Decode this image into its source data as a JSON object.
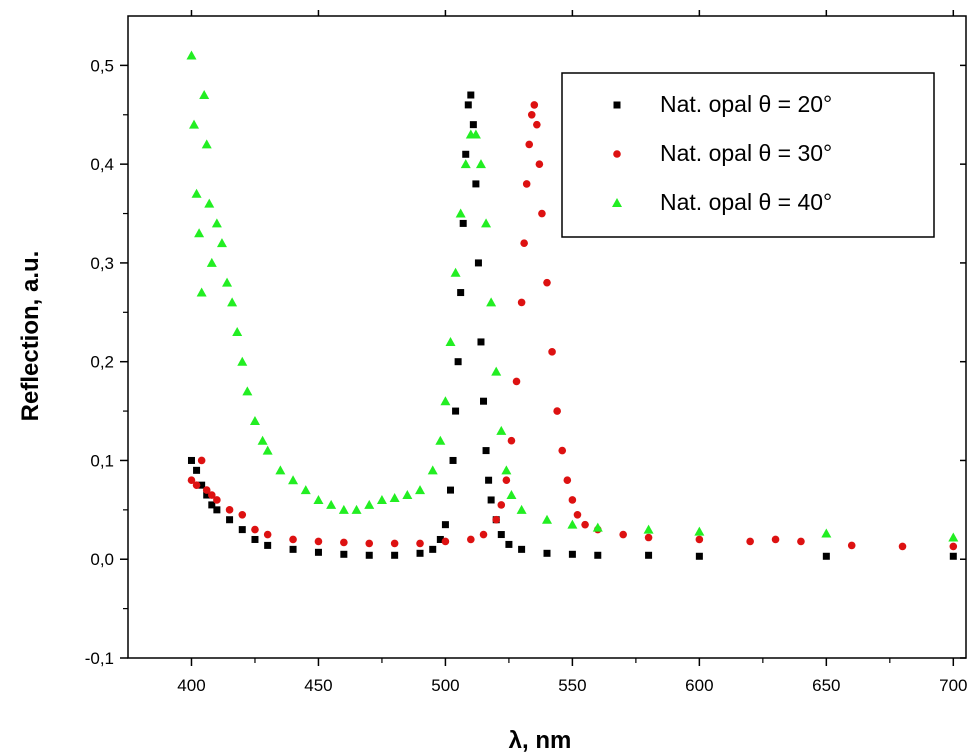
{
  "chart_data": {
    "type": "scatter",
    "title": "",
    "xlabel": "λ, nm",
    "ylabel": "Reflection, a.u.",
    "xlim": [
      375,
      705
    ],
    "ylim": [
      -0.1,
      0.55
    ],
    "x_ticks": [
      400,
      450,
      500,
      550,
      600,
      650,
      700
    ],
    "x_tick_labels": [
      "400",
      "450",
      "500",
      "550",
      "600",
      "650",
      "700"
    ],
    "y_ticks": [
      -0.1,
      0.0,
      0.1,
      0.2,
      0.3,
      0.4,
      0.5
    ],
    "y_tick_labels": [
      "-0,1",
      "0,0",
      "0,1",
      "0,2",
      "0,3",
      "0,4",
      "0,5"
    ],
    "grid": false,
    "legend_position": "top-right",
    "series": [
      {
        "name": "Nat. opal θ = 20°",
        "marker": "square",
        "color": "#000000",
        "points": [
          [
            400,
            0.1
          ],
          [
            402,
            0.09
          ],
          [
            404,
            0.075
          ],
          [
            406,
            0.065
          ],
          [
            408,
            0.055
          ],
          [
            410,
            0.05
          ],
          [
            415,
            0.04
          ],
          [
            420,
            0.03
          ],
          [
            425,
            0.02
          ],
          [
            430,
            0.014
          ],
          [
            440,
            0.01
          ],
          [
            450,
            0.007
          ],
          [
            460,
            0.005
          ],
          [
            470,
            0.004
          ],
          [
            480,
            0.004
          ],
          [
            490,
            0.006
          ],
          [
            495,
            0.01
          ],
          [
            498,
            0.02
          ],
          [
            500,
            0.035
          ],
          [
            502,
            0.07
          ],
          [
            503,
            0.1
          ],
          [
            504,
            0.15
          ],
          [
            505,
            0.2
          ],
          [
            506,
            0.27
          ],
          [
            507,
            0.34
          ],
          [
            508,
            0.41
          ],
          [
            509,
            0.46
          ],
          [
            510,
            0.47
          ],
          [
            511,
            0.44
          ],
          [
            512,
            0.38
          ],
          [
            513,
            0.3
          ],
          [
            514,
            0.22
          ],
          [
            515,
            0.16
          ],
          [
            516,
            0.11
          ],
          [
            517,
            0.08
          ],
          [
            518,
            0.06
          ],
          [
            520,
            0.04
          ],
          [
            522,
            0.025
          ],
          [
            525,
            0.015
          ],
          [
            530,
            0.01
          ],
          [
            540,
            0.006
          ],
          [
            550,
            0.005
          ],
          [
            560,
            0.004
          ],
          [
            580,
            0.004
          ],
          [
            600,
            0.003
          ],
          [
            650,
            0.003
          ],
          [
            700,
            0.003
          ]
        ]
      },
      {
        "name": "Nat. opal θ = 30°",
        "marker": "circle",
        "color": "#dd1111",
        "points": [
          [
            400,
            0.08
          ],
          [
            402,
            0.075
          ],
          [
            404,
            0.1
          ],
          [
            406,
            0.07
          ],
          [
            408,
            0.065
          ],
          [
            410,
            0.06
          ],
          [
            415,
            0.05
          ],
          [
            420,
            0.045
          ],
          [
            425,
            0.03
          ],
          [
            430,
            0.025
          ],
          [
            440,
            0.02
          ],
          [
            450,
            0.018
          ],
          [
            460,
            0.017
          ],
          [
            470,
            0.016
          ],
          [
            480,
            0.016
          ],
          [
            490,
            0.016
          ],
          [
            500,
            0.018
          ],
          [
            510,
            0.02
          ],
          [
            515,
            0.025
          ],
          [
            520,
            0.04
          ],
          [
            522,
            0.055
          ],
          [
            524,
            0.08
          ],
          [
            526,
            0.12
          ],
          [
            528,
            0.18
          ],
          [
            530,
            0.26
          ],
          [
            531,
            0.32
          ],
          [
            532,
            0.38
          ],
          [
            533,
            0.42
          ],
          [
            534,
            0.45
          ],
          [
            535,
            0.46
          ],
          [
            536,
            0.44
          ],
          [
            537,
            0.4
          ],
          [
            538,
            0.35
          ],
          [
            540,
            0.28
          ],
          [
            542,
            0.21
          ],
          [
            544,
            0.15
          ],
          [
            546,
            0.11
          ],
          [
            548,
            0.08
          ],
          [
            550,
            0.06
          ],
          [
            552,
            0.045
          ],
          [
            555,
            0.035
          ],
          [
            560,
            0.03
          ],
          [
            570,
            0.025
          ],
          [
            580,
            0.022
          ],
          [
            600,
            0.02
          ],
          [
            620,
            0.018
          ],
          [
            630,
            0.02
          ],
          [
            640,
            0.018
          ],
          [
            660,
            0.014
          ],
          [
            680,
            0.013
          ],
          [
            700,
            0.013
          ]
        ]
      },
      {
        "name": "Nat. opal θ = 40°",
        "marker": "triangle",
        "color": "#22ee22",
        "points": [
          [
            400,
            0.51
          ],
          [
            401,
            0.44
          ],
          [
            402,
            0.37
          ],
          [
            403,
            0.33
          ],
          [
            404,
            0.27
          ],
          [
            405,
            0.47
          ],
          [
            406,
            0.42
          ],
          [
            407,
            0.36
          ],
          [
            408,
            0.3
          ],
          [
            410,
            0.34
          ],
          [
            412,
            0.32
          ],
          [
            414,
            0.28
          ],
          [
            416,
            0.26
          ],
          [
            418,
            0.23
          ],
          [
            420,
            0.2
          ],
          [
            422,
            0.17
          ],
          [
            425,
            0.14
          ],
          [
            428,
            0.12
          ],
          [
            430,
            0.11
          ],
          [
            435,
            0.09
          ],
          [
            440,
            0.08
          ],
          [
            445,
            0.07
          ],
          [
            450,
            0.06
          ],
          [
            455,
            0.055
          ],
          [
            460,
            0.05
          ],
          [
            465,
            0.05
          ],
          [
            470,
            0.055
          ],
          [
            475,
            0.06
          ],
          [
            480,
            0.062
          ],
          [
            485,
            0.065
          ],
          [
            490,
            0.07
          ],
          [
            495,
            0.09
          ],
          [
            498,
            0.12
          ],
          [
            500,
            0.16
          ],
          [
            502,
            0.22
          ],
          [
            504,
            0.29
          ],
          [
            506,
            0.35
          ],
          [
            508,
            0.4
          ],
          [
            510,
            0.43
          ],
          [
            512,
            0.43
          ],
          [
            514,
            0.4
          ],
          [
            516,
            0.34
          ],
          [
            518,
            0.26
          ],
          [
            520,
            0.19
          ],
          [
            522,
            0.13
          ],
          [
            524,
            0.09
          ],
          [
            526,
            0.065
          ],
          [
            530,
            0.05
          ],
          [
            540,
            0.04
          ],
          [
            550,
            0.035
          ],
          [
            560,
            0.032
          ],
          [
            580,
            0.03
          ],
          [
            600,
            0.028
          ],
          [
            650,
            0.026
          ],
          [
            700,
            0.022
          ]
        ]
      }
    ]
  }
}
